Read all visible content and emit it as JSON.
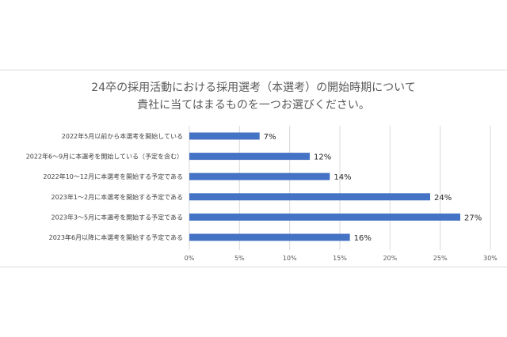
{
  "chart_data": {
    "type": "bar",
    "orientation": "horizontal",
    "title_lines": [
      "24卒の採用活動における採用選考（本選考）の開始時期について",
      "貴社に当てはまるものを一つお選びください。"
    ],
    "categories": [
      "2022年5月以前から本選考を開始している",
      "2022年6〜9月に本選考を開始している（予定を含む）",
      "2022年10〜12月に本選考を開始する予定である",
      "2023年1〜2月に本選考を開始する予定である",
      "2023年3〜5月に本選考を開始する予定である",
      "2023年6月以降に本選考を開始する予定である"
    ],
    "values": [
      7,
      12,
      14,
      24,
      27,
      16
    ],
    "data_labels": [
      "7%",
      "12%",
      "14%",
      "24%",
      "27%",
      "16%"
    ],
    "x_ticks": [
      "0%",
      "5%",
      "10%",
      "15%",
      "20%",
      "25%",
      "30%"
    ],
    "xlim": [
      0,
      30
    ],
    "bar_color": "#4472c4",
    "grid": true,
    "legend": "none"
  }
}
